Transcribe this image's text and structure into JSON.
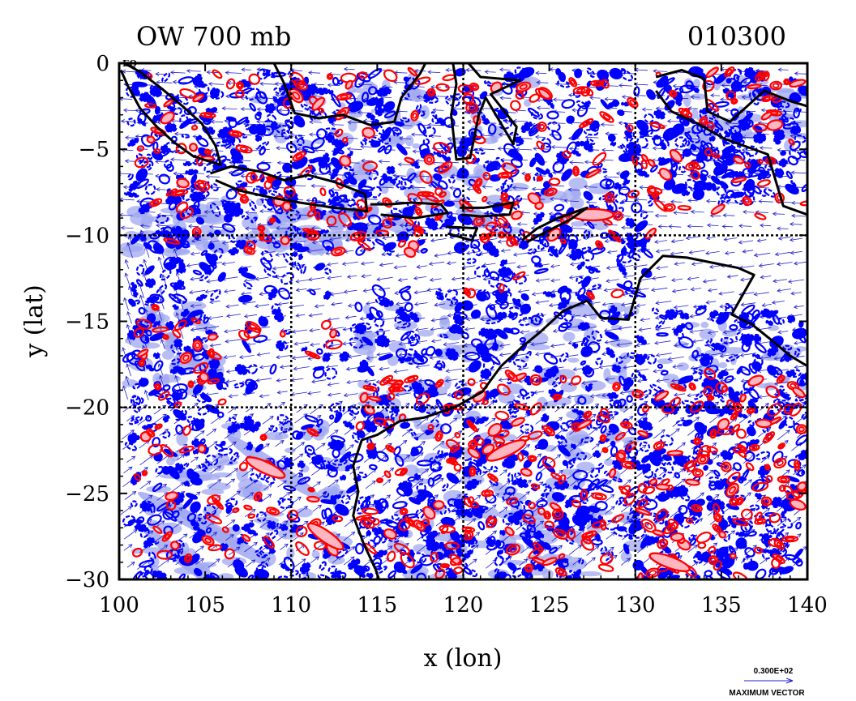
{
  "chart_data": {
    "type": "contour",
    "title_left": "OW 700 mb",
    "title_right": "010300",
    "xlabel": "x (lon)",
    "ylabel": "y (lat)",
    "xlim": [
      100,
      140
    ],
    "ylim": [
      -30,
      0
    ],
    "xticks": [
      100,
      105,
      110,
      115,
      120,
      125,
      130,
      135,
      140
    ],
    "yticks": [
      0,
      -5,
      -10,
      -15,
      -20,
      -25,
      -30
    ],
    "xtick_labels": [
      "100",
      "105",
      "110",
      "115",
      "120",
      "125",
      "130",
      "135",
      "140"
    ],
    "ytick_labels": [
      "0",
      "−5",
      "−10",
      "−15",
      "−20",
      "−25",
      "−30"
    ],
    "gridlines_lon": [
      110,
      120,
      130
    ],
    "gridlines_lat": [
      -10,
      -20
    ],
    "corner_label": "EQ",
    "legend": {
      "value": "0.300E+02",
      "label": "MAXIMUM VECTOR"
    },
    "colors": {
      "positive_contour": "#ff0000",
      "positive_fill": "#ffb6c1",
      "negative_contour": "#0000ff",
      "negative_fill": "#a0a8f0",
      "vector": "#2020d0",
      "coast": "#000000"
    },
    "series": [
      {
        "name": "coastline",
        "type": "line"
      },
      {
        "name": "OW positive contours",
        "type": "contour"
      },
      {
        "name": "OW negative contours",
        "type": "contour"
      },
      {
        "name": "wind vectors",
        "type": "vector"
      }
    ],
    "coastlines": [
      {
        "name": "Sumatra",
        "points": [
          [
            100.3,
            0
          ],
          [
            101.2,
            -0.5
          ],
          [
            102.5,
            -1.5
          ],
          [
            103.8,
            -2.6
          ],
          [
            104.8,
            -3.5
          ],
          [
            105.6,
            -4.8
          ],
          [
            105.9,
            -5.9
          ],
          [
            105.2,
            -5.7
          ],
          [
            104.3,
            -5.4
          ],
          [
            103.2,
            -4.6
          ],
          [
            102.2,
            -3.7
          ],
          [
            101.2,
            -2.6
          ],
          [
            100.5,
            -1.3
          ],
          [
            100.1,
            -0.4
          ]
        ]
      },
      {
        "name": "Java",
        "points": [
          [
            105.3,
            -6.4
          ],
          [
            106.5,
            -6.0
          ],
          [
            108.2,
            -6.3
          ],
          [
            109.6,
            -6.8
          ],
          [
            111.0,
            -6.5
          ],
          [
            112.5,
            -6.9
          ],
          [
            114.3,
            -7.6
          ],
          [
            114.4,
            -8.6
          ],
          [
            112.5,
            -8.4
          ],
          [
            110.5,
            -8.1
          ],
          [
            108.8,
            -7.8
          ],
          [
            107.0,
            -7.4
          ],
          [
            105.6,
            -6.8
          ]
        ]
      },
      {
        "name": "Bali-Lombok-Sumbawa",
        "points": [
          [
            114.6,
            -8.2
          ],
          [
            115.7,
            -8.2
          ],
          [
            117.0,
            -8.1
          ],
          [
            118.7,
            -8.2
          ],
          [
            119.1,
            -8.7
          ],
          [
            117.2,
            -9.0
          ],
          [
            115.2,
            -8.8
          ]
        ]
      },
      {
        "name": "Flores",
        "points": [
          [
            119.8,
            -8.4
          ],
          [
            121.2,
            -8.4
          ],
          [
            122.9,
            -8.1
          ],
          [
            122.7,
            -8.8
          ],
          [
            121.0,
            -8.9
          ],
          [
            119.9,
            -8.8
          ]
        ]
      },
      {
        "name": "Sumba",
        "points": [
          [
            119.0,
            -9.5
          ],
          [
            120.8,
            -9.6
          ],
          [
            120.5,
            -10.3
          ],
          [
            119.1,
            -9.9
          ]
        ]
      },
      {
        "name": "Timor",
        "points": [
          [
            123.4,
            -10.3
          ],
          [
            124.3,
            -9.6
          ],
          [
            125.5,
            -9.0
          ],
          [
            127.2,
            -8.4
          ],
          [
            126.2,
            -9.1
          ],
          [
            124.8,
            -9.8
          ],
          [
            123.7,
            -10.4
          ]
        ]
      },
      {
        "name": "Borneo-south",
        "points": [
          [
            109.0,
            0
          ],
          [
            109.6,
            -1.2
          ],
          [
            110.2,
            -2.9
          ],
          [
            111.6,
            -3.2
          ],
          [
            113.0,
            -3.0
          ],
          [
            114.6,
            -3.6
          ],
          [
            116.0,
            -3.4
          ],
          [
            116.4,
            -2.0
          ],
          [
            117.5,
            -0.6
          ],
          [
            117.8,
            0
          ]
        ]
      },
      {
        "name": "Sulawesi",
        "points": [
          [
            119.4,
            0
          ],
          [
            119.6,
            -1.2
          ],
          [
            119.3,
            -3.0
          ],
          [
            119.6,
            -5.6
          ],
          [
            120.4,
            -5.5
          ],
          [
            120.9,
            -3.0
          ],
          [
            121.3,
            -2.0
          ],
          [
            122.9,
            -4.7
          ],
          [
            123.1,
            -3.7
          ],
          [
            121.6,
            -1.8
          ],
          [
            123.3,
            -1.0
          ],
          [
            121.0,
            -0.8
          ],
          [
            120.3,
            0
          ]
        ]
      },
      {
        "name": "New Guinea",
        "points": [
          [
            131.2,
            -0.8
          ],
          [
            132.7,
            -0.4
          ],
          [
            134.0,
            -0.9
          ],
          [
            134.2,
            -2.8
          ],
          [
            135.5,
            -3.4
          ],
          [
            137.5,
            -1.6
          ],
          [
            139.0,
            -2.2
          ],
          [
            140,
            -2.5
          ],
          [
            140,
            -8.8
          ],
          [
            138.6,
            -8.3
          ],
          [
            137.7,
            -5.3
          ],
          [
            135.2,
            -4.4
          ],
          [
            133.6,
            -3.5
          ],
          [
            132.1,
            -2.8
          ],
          [
            131.2,
            -1.6
          ]
        ]
      },
      {
        "name": "Australia-north-west",
        "points": [
          [
            140,
            -17.6
          ],
          [
            139.0,
            -17.0
          ],
          [
            137.8,
            -16.0
          ],
          [
            136.8,
            -15.2
          ],
          [
            135.6,
            -14.6
          ],
          [
            136.9,
            -12.3
          ],
          [
            136.0,
            -11.9
          ],
          [
            133.0,
            -11.3
          ],
          [
            131.6,
            -11.2
          ],
          [
            130.3,
            -12.5
          ],
          [
            129.6,
            -14.9
          ],
          [
            128.0,
            -14.8
          ],
          [
            127.2,
            -13.8
          ],
          [
            125.8,
            -14.4
          ],
          [
            124.5,
            -15.6
          ],
          [
            123.4,
            -16.5
          ],
          [
            122.2,
            -17.6
          ],
          [
            121.1,
            -19.1
          ],
          [
            119.5,
            -20.0
          ],
          [
            117.7,
            -20.6
          ],
          [
            116.3,
            -20.8
          ],
          [
            115.0,
            -21.6
          ],
          [
            114.1,
            -21.9
          ],
          [
            113.6,
            -23.4
          ],
          [
            113.9,
            -24.9
          ],
          [
            113.6,
            -26.3
          ],
          [
            114.2,
            -27.9
          ],
          [
            114.9,
            -29.4
          ],
          [
            115.1,
            -30
          ]
        ]
      }
    ]
  }
}
